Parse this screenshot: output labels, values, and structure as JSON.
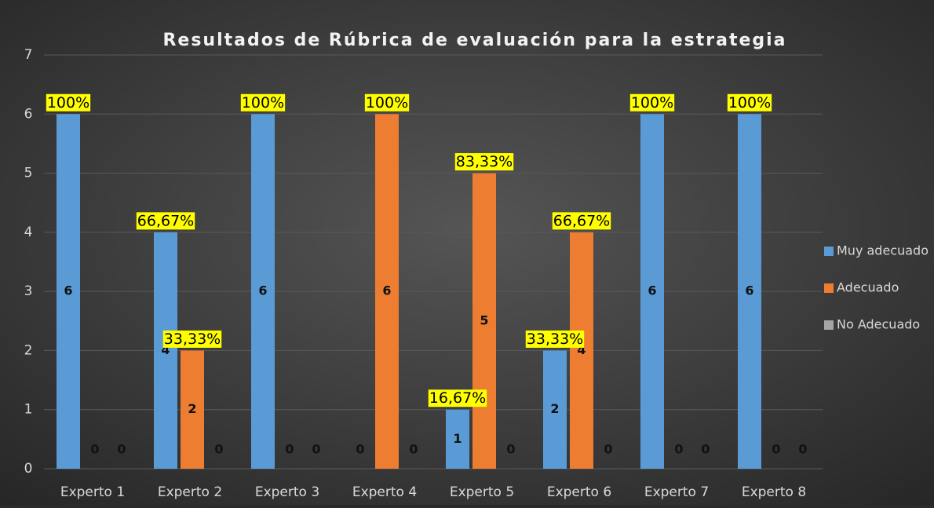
{
  "chart_data": {
    "type": "bar",
    "title": "Resultados de Rúbrica de evaluación para la estrategia",
    "categories": [
      "Experto 1",
      "Experto 2",
      "Experto 3",
      "Experto 4",
      "Experto 5",
      "Experto 6",
      "Experto 7",
      "Experto 8"
    ],
    "series": [
      {
        "name": "Muy adecuado",
        "color": "#5b9bd5",
        "values": [
          6,
          4,
          6,
          0,
          1,
          2,
          6,
          6
        ],
        "percent_labels": [
          "100%",
          "66,67%",
          "100%",
          null,
          "16,67%",
          "33,33%",
          "100%",
          "100%"
        ]
      },
      {
        "name": "Adecuado",
        "color": "#ed7d31",
        "values": [
          0,
          2,
          0,
          6,
          5,
          4,
          0,
          0
        ],
        "percent_labels": [
          null,
          "33,33%",
          null,
          "100%",
          "83,33%",
          "66,67%",
          null,
          null
        ]
      },
      {
        "name": "No Adecuado",
        "color": "#a5a5a5",
        "values": [
          0,
          0,
          0,
          0,
          0,
          0,
          0,
          0
        ],
        "percent_labels": [
          null,
          null,
          null,
          null,
          null,
          null,
          null,
          null
        ]
      }
    ],
    "ylim": [
      0,
      7
    ],
    "yticks": [
      0,
      1,
      2,
      3,
      4,
      5,
      6,
      7
    ],
    "grid": true,
    "legend": "right"
  }
}
